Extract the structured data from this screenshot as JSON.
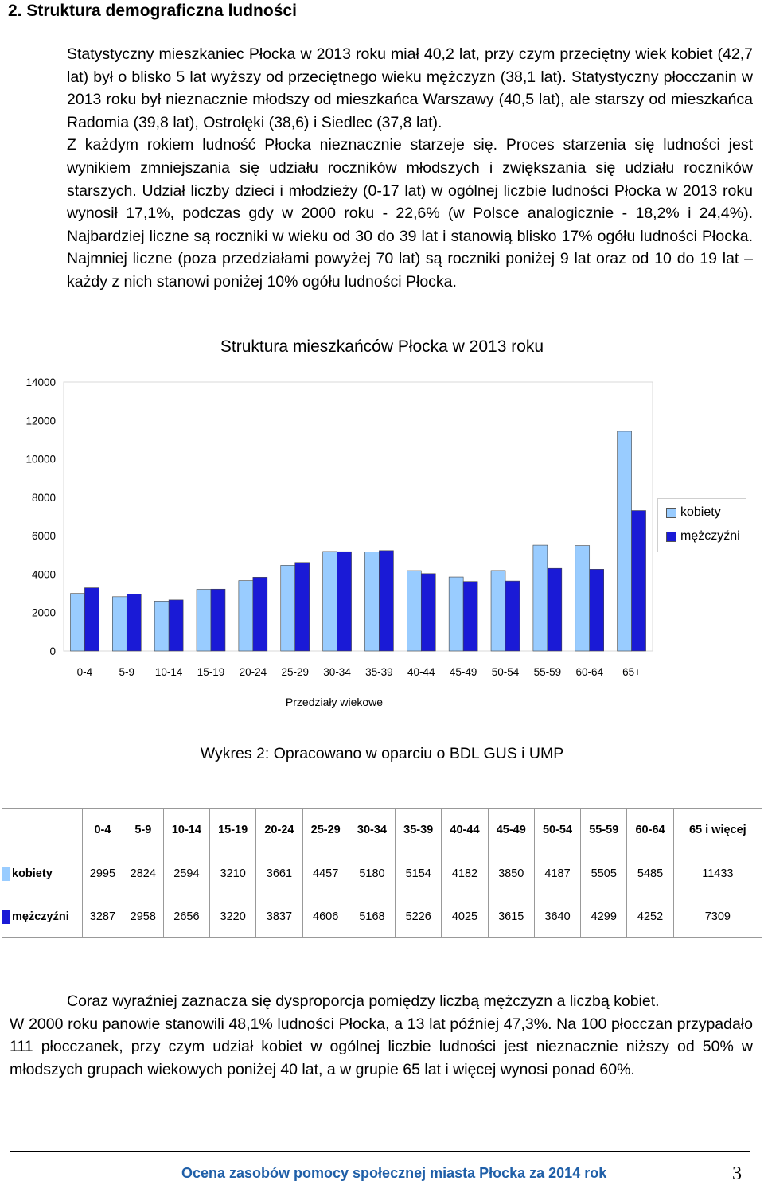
{
  "heading": "2. Struktura demograficzna ludności",
  "para1_a": "Statystyczny mieszkaniec Płocka w 2013 roku miał 40,2 lat, przy czym przeciętny wiek kobiet (42,7 lat) był o blisko 5 lat wyższy od przeciętnego wieku mężczyzn (38,1 lat). Statystyczny płocczanin w 2013 roku był nieznacznie młodszy od mieszkańca Warszawy (40,5 lat), ale starszy od mieszkańca Radomia (39,8 lat), Ostrołęki (38,6) i Siedlec (37,8 lat).",
  "para1_b": "Z każdym rokiem ludność Płocka nieznacznie starzeje się. Proces starzenia się ludności jest wynikiem zmniejszania się udziału roczników młodszych i zwiększania się udziału roczników starszych. Udział liczby dzieci i młodzieży (0-17 lat) w ogólnej liczbie ludności Płocka w 2013 roku wynosił 17,1%, podczas gdy w 2000 roku - 22,6% (w Polsce analogicznie - 18,2% i 24,4%). Najbardziej liczne są roczniki w wieku od 30 do 39 lat i stanowią blisko 17% ogółu ludności Płocka. Najmniej liczne (poza przedziałami powyżej 70 lat) są roczniki poniżej 9 lat oraz od 10 do 19 lat – każdy z nich stanowi poniżej 10% ogółu ludności Płocka.",
  "chart_data": {
    "type": "bar",
    "title": "Struktura mieszkańców Płocka w 2013 roku",
    "xlabel": "Przedziały wiekowe",
    "ylabel": "",
    "ylim": [
      0,
      14000
    ],
    "yticks": [
      "0",
      "2000",
      "4000",
      "6000",
      "8000",
      "10000",
      "12000",
      "14000"
    ],
    "categories": [
      "0-4",
      "5-9",
      "10-14",
      "15-19",
      "20-24",
      "25-29",
      "30-34",
      "35-39",
      "40-44",
      "45-49",
      "50-54",
      "55-59",
      "60-64",
      "65+"
    ],
    "series": [
      {
        "name": "kobiety",
        "color": "#99ccff",
        "values": [
          2995,
          2824,
          2594,
          3210,
          3661,
          4457,
          5180,
          5154,
          4182,
          3850,
          4187,
          5505,
          5485,
          11433
        ]
      },
      {
        "name": "mężczyźni",
        "color": "#1a1ad6",
        "values": [
          3287,
          2958,
          2656,
          3220,
          3837,
          4606,
          5168,
          5226,
          4025,
          3615,
          3640,
          4299,
          4252,
          7309
        ]
      }
    ],
    "legend": "right"
  },
  "caption": "Wykres 2: Opracowano w oparciu o BDL GUS i UMP",
  "table": {
    "headers": [
      "0-4",
      "5-9",
      "10-14",
      "15-19",
      "20-24",
      "25-29",
      "30-34",
      "35-39",
      "40-44",
      "45-49",
      "50-54",
      "55-59",
      "60-64",
      "65 i więcej"
    ],
    "rows": [
      {
        "label": "kobiety",
        "color": "#99ccff",
        "values": [
          "2995",
          "2824",
          "2594",
          "3210",
          "3661",
          "4457",
          "5180",
          "5154",
          "4182",
          "3850",
          "4187",
          "5505",
          "5485",
          "11433"
        ]
      },
      {
        "label": "mężczyźni",
        "color": "#1a1ad6",
        "values": [
          "3287",
          "2958",
          "2656",
          "3220",
          "3837",
          "4606",
          "5168",
          "5226",
          "4025",
          "3615",
          "3640",
          "4299",
          "4252",
          "7309"
        ]
      }
    ]
  },
  "para2_a": "Coraz wyraźniej zaznacza się dysproporcja pomiędzy liczbą mężczyzn a liczbą kobiet.",
  "para2_b": "W 2000 roku panowie stanowili 48,1% ludności Płocka, a 13 lat później 47,3%. Na 100 płocczan przypadało 111 płocczanek, przy czym udział kobiet w ogólnej liczbie ludności jest nieznacznie niższy od 50% w młodszych grupach wiekowych poniżej 40 lat, a w grupie 65 lat i więcej wynosi ponad 60%.",
  "footer": "Ocena zasobów pomocy społecznej miasta Płocka za 2014 rok",
  "page_number": "3"
}
